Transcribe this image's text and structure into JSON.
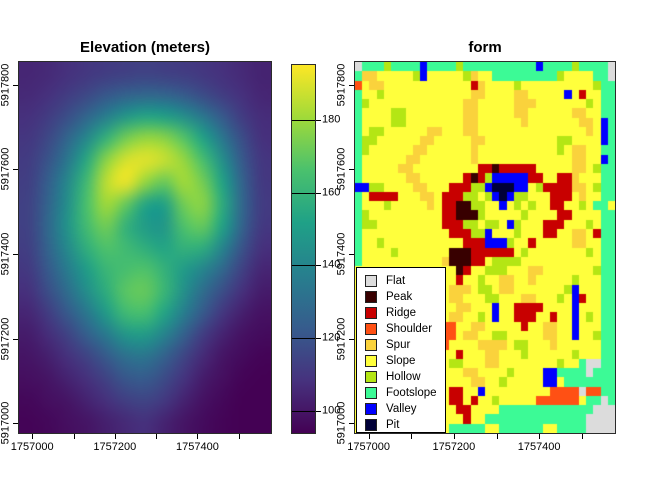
{
  "figure": {
    "background": "#ffffff"
  },
  "chart_data": [
    {
      "id": "elevation",
      "type": "heatmap",
      "title": "Elevation (meters)",
      "x_range": [
        1756968,
        1757578
      ],
      "y_range": [
        5916977,
        5917854
      ],
      "x_ticks": [
        1757000,
        1757100,
        1757200,
        1757300,
        1757400,
        1757500
      ],
      "x_tick_labels": [
        "1757000",
        "",
        "1757200",
        "",
        "1757400",
        ""
      ],
      "y_ticks": [
        5917800,
        5917600,
        5917400,
        5917200,
        5917000
      ],
      "y_tick_labels": [
        "5917800",
        "5917600",
        "5917400",
        "5917200",
        "5917000"
      ],
      "value_range": [
        94,
        195
      ],
      "colorbar": {
        "ticks": [
          100,
          120,
          140,
          160,
          180
        ],
        "labels": [
          "100",
          "120",
          "140",
          "160",
          "180"
        ]
      },
      "colormap": "viridis",
      "colormap_stops": [
        "#440154",
        "#46327e",
        "#365c8d",
        "#277f8e",
        "#1fa187",
        "#4ac16d",
        "#a0da39",
        "#fde725"
      ],
      "grid_size": {
        "cols": 13,
        "rows": 17
      },
      "values": [
        [
          105,
          106,
          108,
          110,
          112,
          113,
          114,
          113,
          112,
          110,
          108,
          106,
          104
        ],
        [
          106,
          108,
          112,
          116,
          121,
          125,
          127,
          126,
          122,
          117,
          112,
          108,
          105
        ],
        [
          108,
          112,
          118,
          127,
          137,
          147,
          153,
          151,
          144,
          134,
          122,
          112,
          107
        ],
        [
          110,
          116,
          127,
          141,
          159,
          173,
          179,
          177,
          168,
          152,
          134,
          118,
          108
        ],
        [
          112,
          120,
          134,
          155,
          177,
          189,
          191,
          187,
          179,
          165,
          144,
          122,
          110
        ],
        [
          113,
          124,
          141,
          163,
          185,
          193,
          179,
          171,
          181,
          173,
          152,
          126,
          111
        ],
        [
          114,
          126,
          144,
          166,
          181,
          171,
          153,
          151,
          173,
          177,
          156,
          128,
          112
        ],
        [
          114,
          128,
          146,
          164,
          173,
          159,
          149,
          147,
          167,
          171,
          152,
          126,
          111
        ],
        [
          113,
          126,
          142,
          158,
          167,
          163,
          157,
          153,
          159,
          157,
          140,
          120,
          108
        ],
        [
          111,
          122,
          136,
          150,
          161,
          165,
          167,
          159,
          149,
          140,
          128,
          114,
          105
        ],
        [
          108,
          118,
          130,
          144,
          157,
          169,
          171,
          161,
          145,
          130,
          118,
          108,
          102
        ],
        [
          105,
          112,
          122,
          134,
          149,
          163,
          165,
          153,
          137,
          122,
          110,
          103,
          99
        ],
        [
          102,
          107,
          114,
          124,
          135,
          147,
          149,
          139,
          125,
          112,
          104,
          99,
          97
        ],
        [
          100,
          103,
          108,
          114,
          122,
          131,
          133,
          125,
          115,
          106,
          100,
          97,
          95
        ],
        [
          98,
          100,
          104,
          108,
          114,
          121,
          123,
          117,
          109,
          102,
          98,
          95,
          94
        ],
        [
          96,
          98,
          100,
          104,
          108,
          113,
          115,
          111,
          104,
          99,
          96,
          94,
          94
        ],
        [
          95,
          96,
          98,
          100,
          103,
          106,
          108,
          104,
          100,
          97,
          95,
          94,
          94
        ]
      ]
    },
    {
      "id": "form",
      "type": "categorical-heatmap",
      "title": "form",
      "x_range": [
        1756968,
        1757578
      ],
      "y_range": [
        5916977,
        5917854
      ],
      "x_ticks": [
        1757000,
        1757100,
        1757200,
        1757300,
        1757400,
        1757500
      ],
      "x_tick_labels": [
        "1757000",
        "",
        "1757200",
        "",
        "1757400",
        ""
      ],
      "y_ticks": [
        5917800,
        5917600,
        5917400,
        5917200,
        5917000
      ],
      "y_tick_labels": [
        "5917800",
        "5917600",
        "5917400",
        "5917200",
        "5917000"
      ],
      "classes": [
        {
          "code": "g",
          "label": "Flat",
          "color": "#DCDCDC"
        },
        {
          "code": "p",
          "label": "Peak",
          "color": "#380000"
        },
        {
          "code": "r",
          "label": "Ridge",
          "color": "#C80000"
        },
        {
          "code": "h",
          "label": "Shoulder",
          "color": "#FF5014"
        },
        {
          "code": "u",
          "label": "Spur",
          "color": "#FAD23C"
        },
        {
          "code": "s",
          "label": "Slope",
          "color": "#FFFF3C"
        },
        {
          "code": "o",
          "label": "Hollow",
          "color": "#B4E614"
        },
        {
          "code": "t",
          "label": "Footslope",
          "color": "#3CFA96"
        },
        {
          "code": "v",
          "label": "Valley",
          "color": "#0000FF"
        },
        {
          "code": "i",
          "label": "Pit",
          "color": "#000038"
        }
      ],
      "grid_size": {
        "cols": 36,
        "rows": 40
      },
      "grid": [
        "gtttottttvttttottttttttttvttttottttg",
        "tuusssssovsssssousstttttttttossssttg",
        "hsuussssssssssssrussssossssssssssott",
        "tssossssssssssssuussssuusssssvsrsstt",
        "tosssssssssssssuusssssuuusssssssostt",
        "tssssoossssssssuusssssuussssssuusstt",
        "tssssoossssssssuussssssusssssssuusvt",
        "tsoossssssuusssuusssssssssssssssusvt",
        "toossssssuusssssuussssssssssoossssvt",
        "tossssssuussssssusssssssssssosuusstt",
        "tssssssuusssssssusssssssssssssuussvt",
        "tsssssuusssssssssrrprrrrrsssssuusott",
        "tssssssuussssssrprovvvvvrrssrrussstt",
        "vvoossssuusssrrrooviiivvsorrrruusott",
        "tsrrrrsssuusrrroosovivoosssrrrsusstt",
        "tsssosssssusrrppoossvsosossrrssostt",
        "tossssssssssrrppposssssossssrrsssstt",
        "toosssssssssrrroosoosvosssrrrsssostt",
        "tssssssssssssrrroovsssosssrrssuusrtt",
        "tssosssssssssssrrrvvvossrsssssuusstt",
        "tssssosssssssppprrrrrrsossssssssostt",
        "tsssssssssssuppprrsoooossssssssssstt",
        "ssssssssssssssprssooosssuusssssssott",
        "ssssssssssssssrssossuussusssssossstt",
        "sssssssssssssuuusoosuusssssssovssstt",
        "sssssssssssssuusssoosssuusssosvrsstt",
        "ssssssssssssssuusssvssrrrrssssvssstt",
        "sssssssssssssuussosvssrrrssrssvsostt",
        "sssssssssssshhssuusssssrssuussvssstt",
        "sssssssssssshhsuussoosssssuussvssott",
        "sssssssssssshssssuuuusoosssusssssstt",
        "ssssssssssssssrsssuusssossssssossstt",
        "sssssssssssssoosssuussssssssosstggtt",
        "sssssssssssssssuussssossssvvttttgttt",
        "ssssssssssssssssuussosssssvvsttttttt",
        "sssssssssssssrrssvssssssssshhhhghhtt",
        "sssssssssssssrrsrssossssshhhhhhsttgt",
        "ssssssssssssssrrsssstttttttttttttggg",
        "sssssssssssssssrssttttttttttttttgggg",
        "ssssssssssssstttttssttttttssttttgggg"
      ]
    }
  ]
}
